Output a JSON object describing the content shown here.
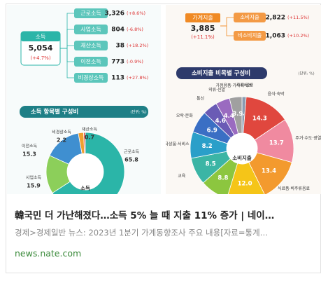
{
  "infographic": {
    "income": {
      "label": "소득",
      "total": "5,054",
      "change": "(+4.7%)",
      "items": [
        {
          "label": "근로소득",
          "value": "3,326",
          "change": "(+8.6%)"
        },
        {
          "label": "사업소득",
          "value": "804",
          "change": "(-6.8%)"
        },
        {
          "label": "재산소득",
          "value": "38",
          "change": "(+18.2%)"
        },
        {
          "label": "이전소득",
          "value": "773",
          "change": "(-0.9%)"
        },
        {
          "label": "비경상소득",
          "value": "113",
          "change": "(+27.8%)"
        }
      ],
      "chart_title": "소득 항목별 구성비",
      "unit": "(단위: %)",
      "donut": {
        "type": "pie",
        "center_label": "소득",
        "segments": [
          {
            "name": "근로소득",
            "value": 65.8,
            "color": "#2bb5a8"
          },
          {
            "name": "사업소득",
            "value": 15.9,
            "color": "#8ccf5a"
          },
          {
            "name": "이전소득",
            "value": 15.3,
            "color": "#3f8fd0"
          },
          {
            "name": "비경상소득",
            "value": 2.2,
            "color": "#f0a030"
          },
          {
            "name": "재산소득",
            "value": 0.7,
            "color": "#e05050"
          }
        ]
      }
    },
    "spending": {
      "label": "가계지출",
      "total": "3,885",
      "change": "(+11.1%)",
      "items": [
        {
          "label": "소비지출",
          "value": "2,822",
          "change": "(+11.5%)"
        },
        {
          "label": "비소비지출",
          "value": "1,063",
          "change": "(+10.2%)"
        }
      ],
      "chart_title": "소비지출 비목별 구성비",
      "unit": "(단위: %)",
      "donut": {
        "type": "pie",
        "center_label": "소비지출",
        "segments": [
          {
            "name": "주류·담배",
            "value": 1.3,
            "color": "#8a9bb0"
          },
          {
            "name": "음식·숙박",
            "value": 14.3,
            "color": "#e0473e"
          },
          {
            "name": "주거·수도·광열",
            "value": 13.7,
            "color": "#f08aa0"
          },
          {
            "name": "식료품·비주류음료",
            "value": 13.4,
            "color": "#f39a2e"
          },
          {
            "value": 12.0,
            "value_label": "12.0",
            "color": "#f5c518"
          },
          {
            "value": 8.8,
            "color": "#8cc63f"
          },
          {
            "name": "교육",
            "value": 8.5,
            "color": "#3bb5a5"
          },
          {
            "name": "기타상품·서비스",
            "value": 8.2,
            "color": "#2a9fc9"
          },
          {
            "name": "오락·문화",
            "value": 6.9,
            "color": "#3a6fc4"
          },
          {
            "name": "통신",
            "value": 4.6,
            "color": "#6a5bb5"
          },
          {
            "name": "의류·신발",
            "value": 4.4,
            "color": "#9a6bc0"
          },
          {
            "name": "가정용품·가사서비스",
            "value": 3.9,
            "color": "#a0a0a0"
          }
        ]
      }
    }
  },
  "card": {
    "title": "韓국민 더 가난해졌다…소득 5% 늘 때 지출 11% 증가 | 네이…",
    "summary": "경제>경제일반 뉴스: 2023년 1분기 가계동향조사 주요 내용[자료=통계…",
    "source": "news.nate.com"
  }
}
